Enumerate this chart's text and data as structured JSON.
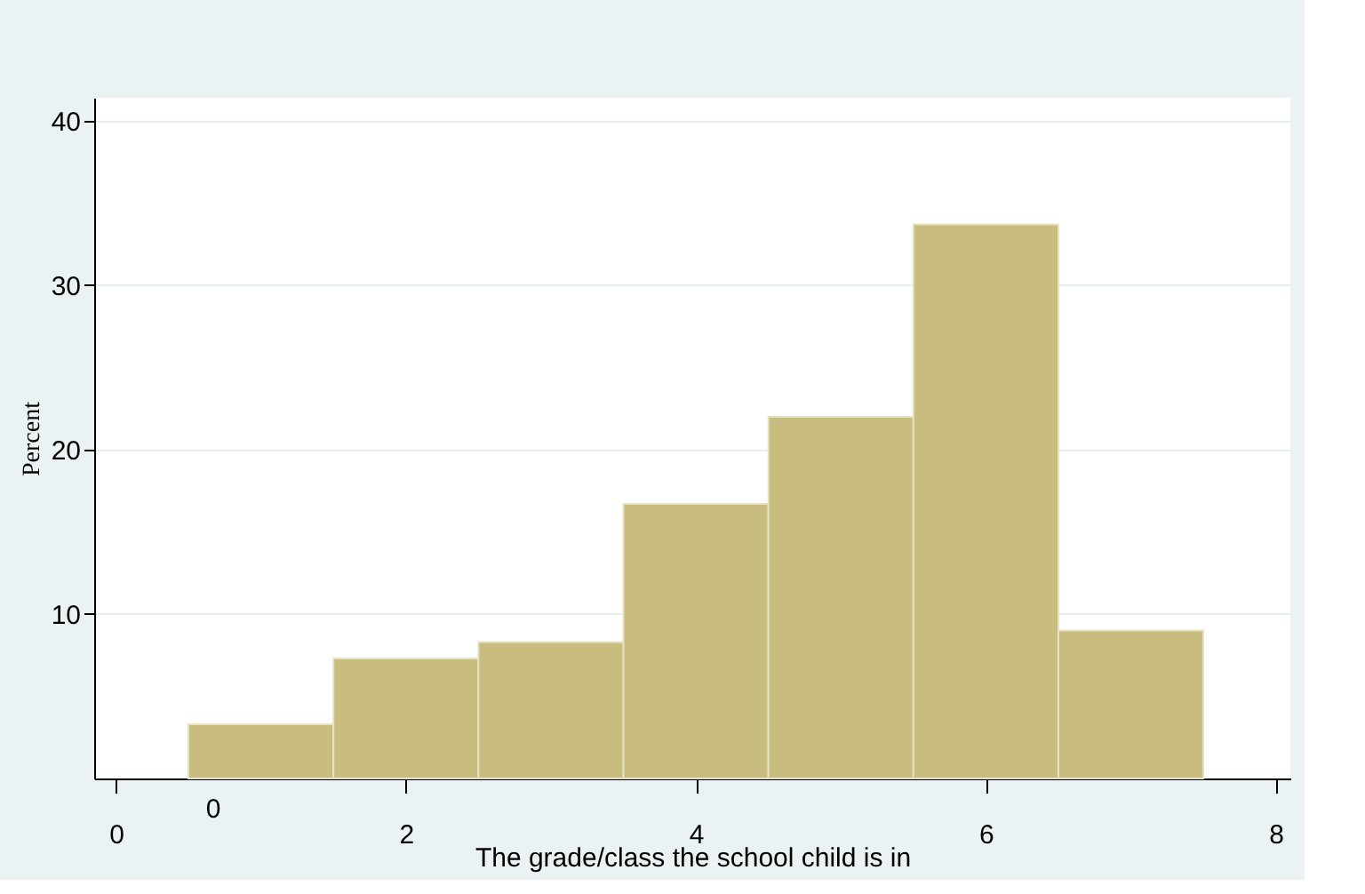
{
  "chart_data": {
    "type": "histogram",
    "xlabel": "The grade/class the school child is in",
    "ylabel": "Percent",
    "bins": [
      0.5,
      1.5,
      2.5,
      3.5,
      4.5,
      5.5,
      6.5,
      7.5
    ],
    "values": [
      3.3,
      7.3,
      8.3,
      16.7,
      22.0,
      33.7,
      9.0
    ],
    "color": "#c8bd7e",
    "xlim": [
      -0.15,
      8.1
    ],
    "xticks": [
      0,
      2,
      4,
      6,
      8
    ],
    "ylim": [
      0,
      41.4
    ],
    "yticks": [
      10,
      20,
      30,
      40
    ],
    "grid": "y",
    "annotations": [
      "0"
    ]
  }
}
